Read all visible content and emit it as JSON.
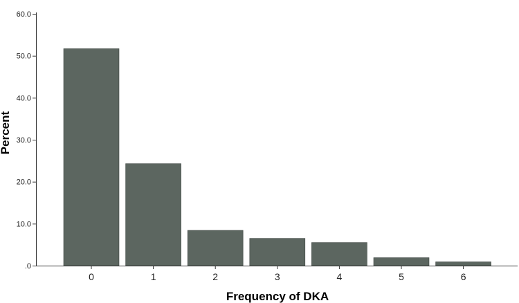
{
  "chart_data": {
    "type": "bar",
    "title": "",
    "xlabel": "Frequency of DKA",
    "ylabel": "Percent",
    "categories": [
      "0",
      "1",
      "2",
      "3",
      "4",
      "5",
      "6"
    ],
    "values": [
      51.7,
      24.3,
      8.4,
      6.5,
      5.5,
      1.9,
      0.9
    ],
    "ylim": [
      0,
      60
    ],
    "y_ticks": [
      {
        "value": 0,
        "label": ".0"
      },
      {
        "value": 10,
        "label": "10.0"
      },
      {
        "value": 20,
        "label": "20.0"
      },
      {
        "value": 30,
        "label": "30.0"
      },
      {
        "value": 40,
        "label": "40.0"
      },
      {
        "value": 50,
        "label": "50.0"
      },
      {
        "value": 60,
        "label": "60.0"
      }
    ],
    "grid": false,
    "legend": "none",
    "bar_color": "#5c6660",
    "axis_color": "#333333"
  }
}
